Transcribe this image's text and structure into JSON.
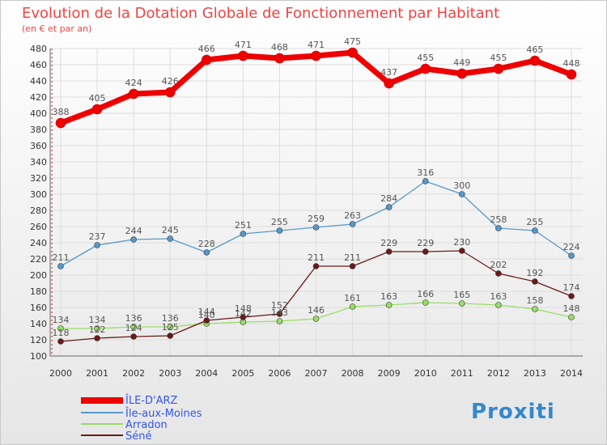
{
  "chart_data": {
    "type": "line",
    "title": "Evolution de la Dotation Globale de Fonctionnement par Habitant",
    "subtitle": "(en € et par an)",
    "xlabel": "",
    "ylabel": "",
    "ylim": [
      100,
      480
    ],
    "yticks": [
      100,
      120,
      140,
      160,
      180,
      200,
      220,
      240,
      260,
      280,
      300,
      320,
      340,
      360,
      380,
      400,
      420,
      440,
      460,
      480
    ],
    "categories": [
      "2000",
      "2001",
      "2002",
      "2003",
      "2004",
      "2005",
      "2006",
      "2007",
      "2008",
      "2009",
      "2010",
      "2011",
      "2012",
      "2013",
      "2014"
    ],
    "grid": true,
    "legend_position": "bottom-left",
    "series": [
      {
        "name": "ÎLE-D'ARZ",
        "color": "#ee0000",
        "values": [
          388,
          405,
          424,
          426,
          466,
          471,
          468,
          471,
          475,
          437,
          455,
          449,
          455,
          465,
          448
        ]
      },
      {
        "name": "Île-aux-Moines",
        "color": "#5599cc",
        "values": [
          211,
          237,
          244,
          245,
          228,
          251,
          255,
          259,
          263,
          284,
          316,
          300,
          258,
          255,
          224
        ]
      },
      {
        "name": "Arradon",
        "color": "#99dd66",
        "values": [
          134,
          134,
          136,
          136,
          140,
          142,
          143,
          146,
          161,
          163,
          166,
          165,
          163,
          158,
          148
        ]
      },
      {
        "name": "Séné",
        "color": "#6b1a1a",
        "values": [
          118,
          122,
          124,
          125,
          144,
          148,
          152,
          211,
          211,
          229,
          229,
          230,
          202,
          192,
          174
        ]
      }
    ],
    "data_labels": {
      "ÎLE-D'ARZ": [
        "388",
        "405",
        "424",
        "426",
        "466",
        "471",
        "468",
        "471",
        "475",
        "437",
        "455",
        "449",
        "455",
        "465",
        "448"
      ],
      "Île-aux-Moines": [
        "211",
        "237",
        "244",
        "245",
        "228",
        "251",
        "255",
        "259",
        "263",
        "284",
        "316",
        "300",
        "258",
        "255",
        "224"
      ],
      "Arradon": [
        "134",
        "134",
        "136",
        "136",
        "140",
        "142",
        "143",
        "146",
        "161",
        "163",
        "166",
        "165",
        "163",
        "158",
        "148"
      ],
      "Séné": [
        "118",
        "122",
        "124",
        "125",
        "144",
        "148",
        "152",
        "211",
        "211",
        "229",
        "229",
        "230",
        "202",
        "192",
        "174"
      ]
    }
  },
  "logo": {
    "text": "Proxiti"
  }
}
